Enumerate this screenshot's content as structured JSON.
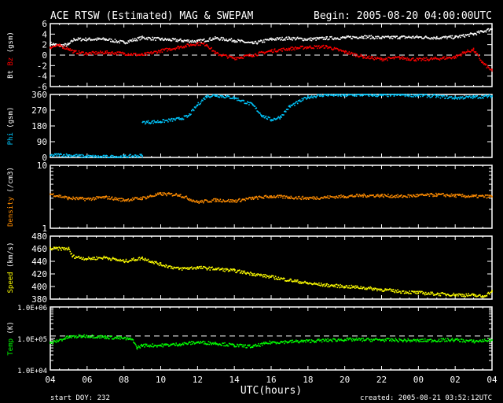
{
  "title": "ACE RTSW (Estimated) MAG & SWEPAM",
  "begin": "Begin: 2005-08-20 04:00:00UTC",
  "start_doy": "start DOY: 232",
  "created": "created: 2005-08-21 03:52:12UTC",
  "colors": {
    "bt": "#ffffff",
    "bz": "#ff0000",
    "phi": "#00c8ff",
    "density": "#ff8c00",
    "speed": "#ffff00",
    "temp": "#00ff00"
  },
  "chart_data": [
    {
      "type": "scatter",
      "panel": "mag",
      "ylabel_parts": [
        "Bt",
        "Bz",
        "(gsm)"
      ],
      "ylim": [
        -6,
        6
      ],
      "scale": "linear",
      "yticks": [
        "6",
        "4",
        "2",
        "0",
        "-2",
        "-4",
        "-6"
      ],
      "ytick_values": [
        6,
        4,
        2,
        0,
        -2,
        -4,
        -6
      ],
      "ref_line": 0,
      "series": [
        {
          "name": "Bt",
          "x": [
            0,
            0.5,
            1,
            1.3,
            2,
            3,
            4,
            5,
            6,
            7,
            8,
            9,
            10,
            11,
            12,
            13,
            14,
            15,
            16,
            17,
            18,
            19,
            20,
            21,
            22,
            23,
            23.5,
            24
          ],
          "y": [
            2.2,
            1.8,
            2,
            3,
            3,
            3,
            2.4,
            3.3,
            3,
            2.8,
            2.6,
            3.2,
            2.8,
            2.2,
            3,
            3.2,
            3,
            3.2,
            3.3,
            3.5,
            3.3,
            3.4,
            3.4,
            3.3,
            3.4,
            4,
            4.5,
            5
          ]
        },
        {
          "name": "Bz",
          "x": [
            0,
            0.5,
            1,
            1.3,
            2,
            3,
            4,
            5,
            6,
            7,
            8,
            8.5,
            9,
            10,
            11,
            12,
            13,
            14,
            15,
            16,
            17,
            18,
            19,
            20,
            21,
            22,
            22.5,
            23,
            23.5,
            24
          ],
          "y": [
            1.5,
            1.8,
            1.2,
            0.6,
            0.3,
            0.5,
            0.3,
            0,
            0.8,
            1.5,
            2.2,
            2,
            0.3,
            -0.6,
            0,
            0.8,
            1.2,
            1.5,
            1.6,
            0.6,
            -0.3,
            -0.8,
            -0.5,
            -0.9,
            -0.7,
            -0.4,
            0.5,
            1,
            -1.5,
            -3
          ]
        }
      ]
    },
    {
      "type": "scatter",
      "panel": "phi",
      "ylabel_parts": [
        "Phi",
        "(gsm)"
      ],
      "ylim": [
        0,
        360
      ],
      "scale": "linear",
      "yticks": [
        "360",
        "270",
        "180",
        "90",
        "0"
      ],
      "ytick_values": [
        360,
        270,
        180,
        90,
        0
      ],
      "series": [
        {
          "name": "Phi",
          "x": [
            0,
            0.5,
            1,
            2,
            3,
            4,
            5,
            5.01,
            6,
            7,
            7.5,
            8,
            8.5,
            9,
            10,
            11,
            11.5,
            12,
            12.5,
            13,
            14,
            15,
            16,
            17,
            18,
            19,
            20,
            21,
            22,
            23,
            24
          ],
          "y": [
            10,
            15,
            12,
            5,
            3,
            5,
            10,
            200,
            205,
            220,
            235,
            300,
            350,
            355,
            340,
            300,
            240,
            215,
            230,
            290,
            345,
            358,
            355,
            358,
            355,
            358,
            355,
            350,
            340,
            345,
            350
          ]
        }
      ]
    },
    {
      "type": "scatter",
      "panel": "density",
      "ylabel_parts": [
        "Density",
        "(/cm3)"
      ],
      "ylim": [
        1,
        10
      ],
      "scale": "log",
      "yticks": [
        "10",
        "1"
      ],
      "ytick_values": [
        10,
        1
      ],
      "series": [
        {
          "name": "Density",
          "x": [
            0,
            1,
            2,
            3,
            4,
            5,
            6,
            7,
            8,
            9,
            10,
            11,
            12,
            13,
            14,
            15,
            16,
            17,
            18,
            19,
            20,
            21,
            22,
            23,
            24
          ],
          "y": [
            3.5,
            3,
            2.9,
            3.1,
            2.8,
            3,
            3.5,
            3.4,
            2.6,
            2.8,
            2.7,
            3,
            3.2,
            3.1,
            3,
            3.1,
            3.2,
            3.3,
            3.3,
            3.2,
            3.3,
            3.4,
            3.3,
            3.2,
            3.2
          ]
        }
      ]
    },
    {
      "type": "scatter",
      "panel": "speed",
      "ylabel_parts": [
        "Speed",
        "(km/s)"
      ],
      "ylim": [
        380,
        480
      ],
      "scale": "linear",
      "yticks": [
        "480",
        "460",
        "440",
        "420",
        "400",
        "380"
      ],
      "ytick_values": [
        480,
        460,
        440,
        420,
        400,
        380
      ],
      "series": [
        {
          "name": "Speed",
          "x": [
            0,
            1,
            1.2,
            2,
            3,
            4,
            5,
            6,
            7,
            8,
            9,
            10,
            11,
            12,
            13,
            14,
            15,
            16,
            17,
            18,
            19,
            20,
            21,
            22,
            23,
            23.5,
            24
          ],
          "y": [
            460,
            460,
            448,
            444,
            446,
            440,
            445,
            435,
            428,
            430,
            428,
            425,
            420,
            415,
            410,
            405,
            402,
            400,
            398,
            395,
            392,
            390,
            388,
            387,
            386,
            384,
            392
          ]
        }
      ]
    },
    {
      "type": "scatter",
      "panel": "temp",
      "ylabel_parts": [
        "Temp",
        "(K)"
      ],
      "ylim": [
        10000,
        1000000
      ],
      "scale": "log",
      "yticks": [
        "1.0E+06",
        "1.0E+05",
        "1.0E+04"
      ],
      "ytick_values": [
        1000000,
        100000,
        10000
      ],
      "ref_line": 120000,
      "series": [
        {
          "name": "Temp",
          "x": [
            0,
            1,
            2,
            3,
            4,
            4.5,
            4.7,
            5,
            6,
            7,
            8,
            9,
            10,
            11,
            12,
            14,
            16,
            18,
            20,
            22,
            23,
            24
          ],
          "y": [
            70000,
            110000,
            120000,
            110000,
            100000,
            90000,
            50000,
            60000,
            60000,
            65000,
            75000,
            70000,
            60000,
            55000,
            75000,
            82000,
            92000,
            90000,
            85000,
            90000,
            80000,
            90000
          ]
        }
      ]
    }
  ],
  "xaxis": {
    "label": "UTC(hours)",
    "xlim": [
      0,
      24
    ],
    "ticks": [
      "04",
      "06",
      "08",
      "10",
      "12",
      "14",
      "16",
      "18",
      "20",
      "22",
      "00",
      "02",
      "04"
    ]
  }
}
